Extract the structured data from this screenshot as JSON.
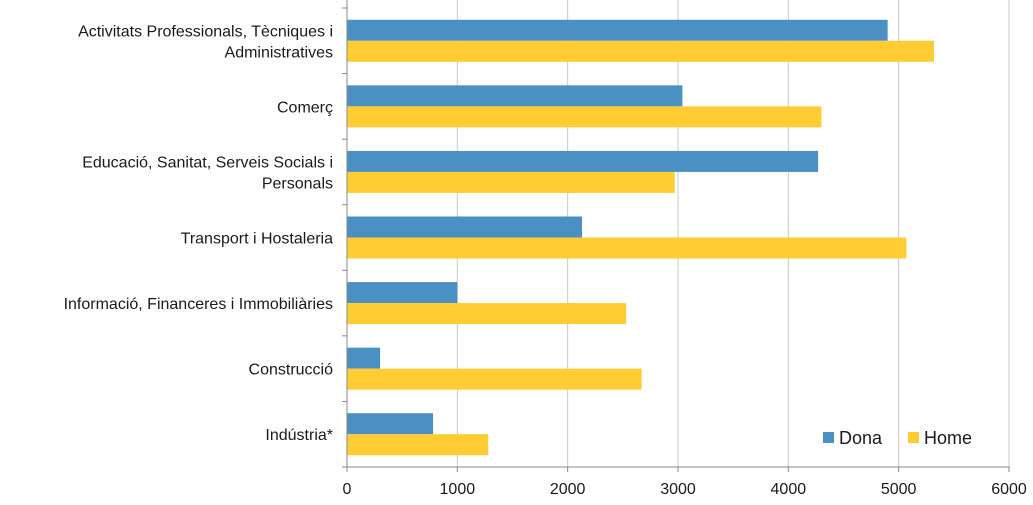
{
  "chart_data": {
    "type": "bar",
    "orientation": "horizontal",
    "categories": [
      "Activitats Professionals, Tècniques i Administratives",
      "Comerç",
      "Educació, Sanitat, Serveis Socials i Personals",
      "Transport i Hostaleria",
      "Informació, Financeres i Immobiliàries",
      "Construcció",
      "Indústria*"
    ],
    "category_lines": [
      [
        "Activitats Professionals, Tècniques i",
        "Administratives"
      ],
      [
        "Comerç"
      ],
      [
        "Educació, Sanitat, Serveis Socials i",
        "Personals"
      ],
      [
        "Transport i Hostaleria"
      ],
      [
        "Informació, Financeres i Immobiliàries"
      ],
      [
        "Construcció"
      ],
      [
        "Indústria*"
      ]
    ],
    "series": [
      {
        "name": "Dona",
        "color": "#4a90c2",
        "values": [
          4900,
          3040,
          4270,
          2130,
          1000,
          300,
          780
        ]
      },
      {
        "name": "Home",
        "color": "#ffcc33",
        "values": [
          5320,
          4300,
          2970,
          5070,
          2530,
          2670,
          1280
        ]
      }
    ],
    "xlim": [
      0,
      6000
    ],
    "xticks": [
      "0",
      "1000",
      "2000",
      "3000",
      "4000",
      "5000",
      "6000"
    ],
    "grid": "vertical",
    "legend_position": "bottom-right",
    "title": "",
    "xlabel": "",
    "ylabel": ""
  }
}
